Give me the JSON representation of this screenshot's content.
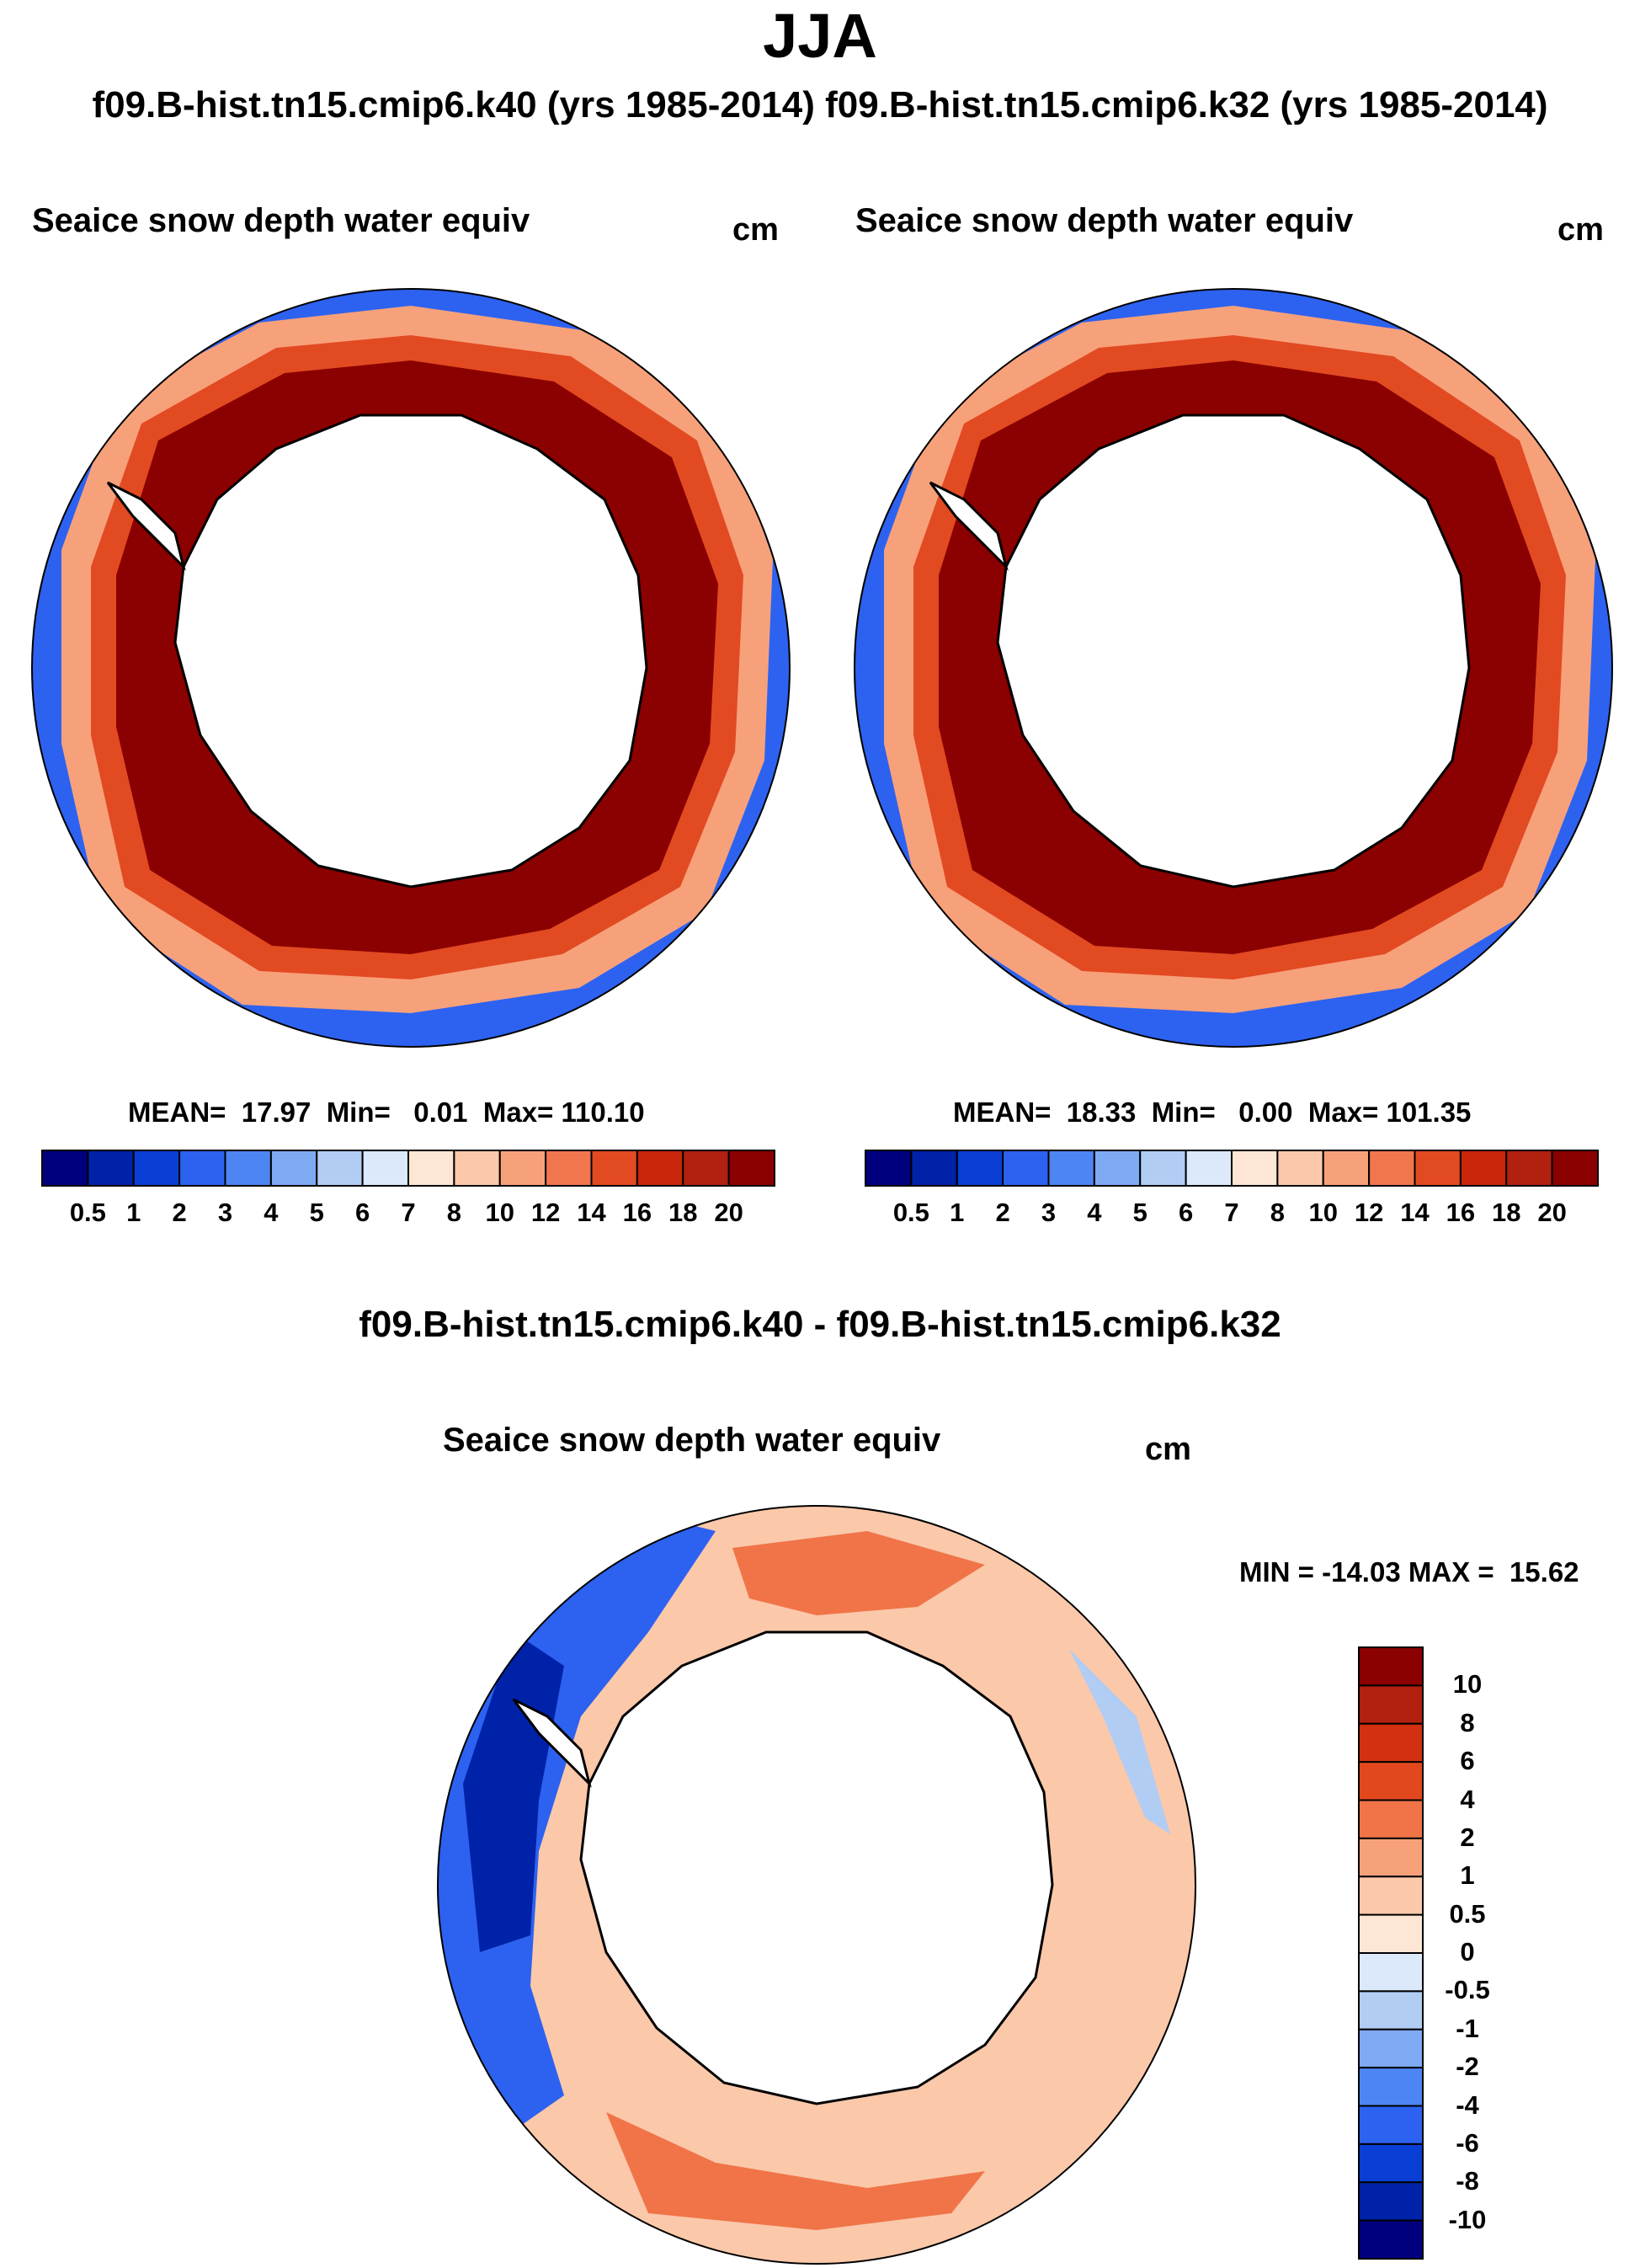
{
  "title": "JJA",
  "subtitle": "f09.B-hist.tn15.cmip6.k40 (yrs 1985-2014) f09.B-hist.tn15.cmip6.k32 (yrs 1985-2014)",
  "panels": [
    {
      "title": "Seaice snow depth water equiv",
      "units": "cm",
      "stats": "MEAN=  17.97  Min=   0.01  Max= 110.10"
    },
    {
      "title": "Seaice snow depth water equiv",
      "units": "cm",
      "stats": "MEAN=  18.33  Min=   0.00  Max= 101.35"
    }
  ],
  "diff_title": "f09.B-hist.tn15.cmip6.k40 - f09.B-hist.tn15.cmip6.k32",
  "diff_panel": {
    "title": "Seaice snow depth water equiv",
    "units": "cm",
    "stats": "MIN = -14.03 MAX =  15.62"
  },
  "colorbar_levels": [
    "0.5",
    "1",
    "2",
    "3",
    "4",
    "5",
    "6",
    "7",
    "8",
    "10",
    "12",
    "14",
    "16",
    "18",
    "20"
  ],
  "colorbar_colors": [
    "#00007f",
    "#0022a8",
    "#0a3fd6",
    "#2d62f0",
    "#4d86f2",
    "#7eaaf3",
    "#b1cdf4",
    "#dbe9fa",
    "#fde7d4",
    "#fbc8aa",
    "#f7a17b",
    "#f0764e",
    "#e24a22",
    "#c9260b",
    "#b22010",
    "#8b0000"
  ],
  "diff_levels": [
    "10",
    "8",
    "6",
    "4",
    "2",
    "1",
    "0.5",
    "0",
    "-0.5",
    "-1",
    "-2",
    "-4",
    "-6",
    "-8",
    "-10"
  ],
  "diff_colors": [
    "#8b0000",
    "#b22010",
    "#d23010",
    "#e2481d",
    "#f07448",
    "#f7a17b",
    "#fbc8aa",
    "#fde7d4",
    "#dbe9fa",
    "#b1cdf4",
    "#7eaaf3",
    "#4d86f2",
    "#2d62f0",
    "#0a3fd6",
    "#0022a8",
    "#00007f"
  ]
}
